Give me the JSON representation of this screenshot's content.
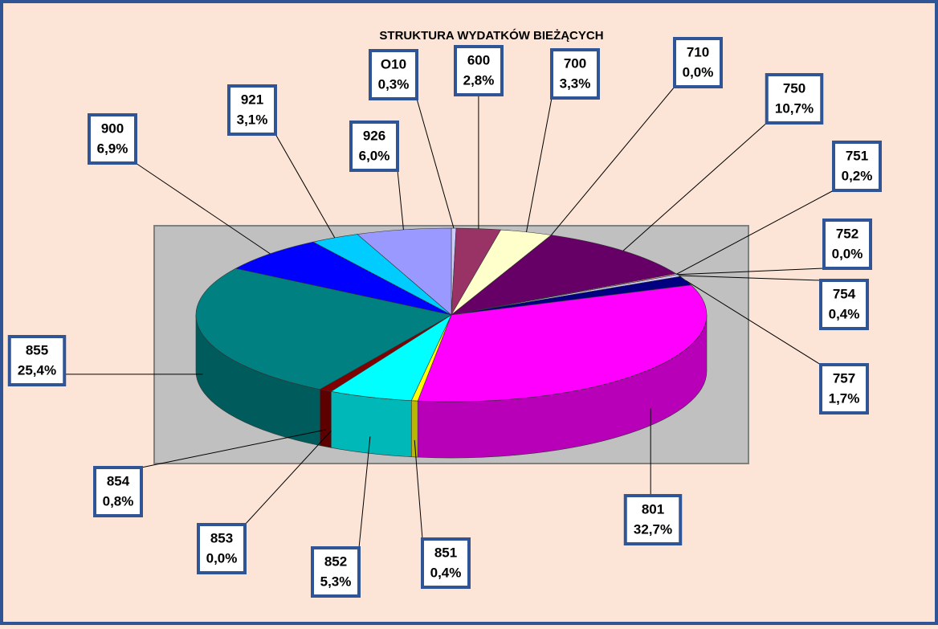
{
  "chart_data": {
    "type": "pie",
    "title": "STRUKTURA WYDATKÓW BIEŻĄCYCH",
    "categories": [
      "O10",
      "600",
      "700",
      "710",
      "750",
      "751",
      "752",
      "754",
      "757",
      "801",
      "851",
      "852",
      "853",
      "854",
      "855",
      "900",
      "921",
      "926"
    ],
    "values": [
      0.3,
      2.8,
      3.3,
      0.0,
      10.7,
      0.2,
      0.0,
      0.4,
      1.7,
      32.7,
      0.4,
      5.3,
      0.0,
      0.8,
      25.4,
      6.9,
      3.1,
      6.0
    ],
    "value_labels": [
      "0,3%",
      "2,8%",
      "3,3%",
      "0,0%",
      "10,7%",
      "0,2%",
      "0,0%",
      "0,4%",
      "1,7%",
      "32,7%",
      "0,4%",
      "5,3%",
      "0,0%",
      "0,8%",
      "25,4%",
      "6,9%",
      "3,1%",
      "6,0%"
    ],
    "colors": [
      "#ccccff",
      "#993366",
      "#ffffcc",
      "#ff8080",
      "#660066",
      "#ff9999",
      "#c0c0c0",
      "#ccccff",
      "#000080",
      "#ff00ff",
      "#ffff00",
      "#00ffff",
      "#008080",
      "#800000",
      "#008080",
      "#0000ff",
      "#00ccff",
      "#9999ff"
    ]
  }
}
